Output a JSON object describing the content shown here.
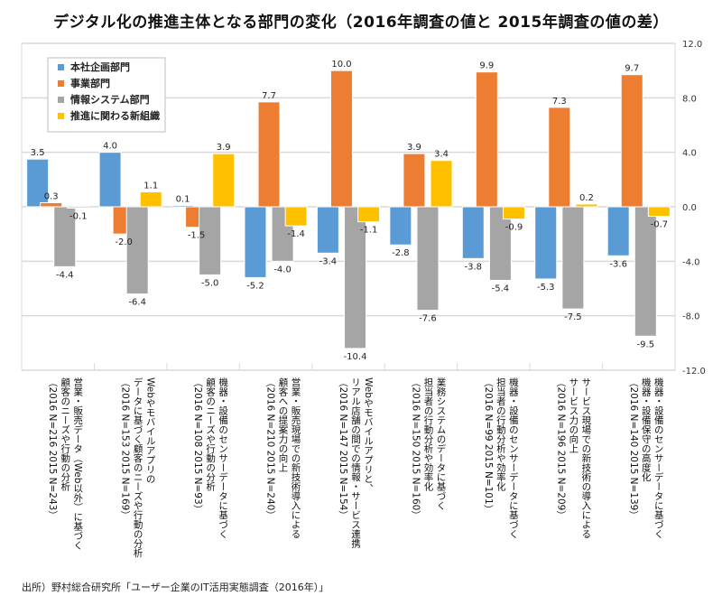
{
  "chart_data": {
    "type": "bar",
    "title": "デジタル化の推進主体となる部門の変化（2016年調査の値と 2015年調査の値の差）",
    "xlabel": "",
    "ylabel": "",
    "ylim": [
      -12.0,
      12.0
    ],
    "yticks": [
      "12.0",
      "8.0",
      "4.0",
      "0.0",
      "-4.0",
      "-8.0",
      "-12.0"
    ],
    "ytick_values": [
      12,
      8,
      4,
      0,
      -4,
      -8,
      -12
    ],
    "y_axis_side": "right",
    "grid": true,
    "legend_position": "top-left",
    "categories": [
      [
        "営業・販売データ（Web以外）に基づく",
        "顧客のニーズや行動の分析",
        "（2016 N=216 2015 N=243）"
      ],
      [
        "Webやモバイルアプリの",
        "データに基づく顧客のニーズや行動の分析",
        "（2016 N=153 2015 N=169）"
      ],
      [
        "機器・設備のセンサーデータに基づく",
        "顧客のニーズや行動の分析",
        "（2016 N=108 2015 N=93）"
      ],
      [
        "営業・販売現場での新技術導入による",
        "顧客への提案力の向上",
        "（2016 N=210 2015 N=240）"
      ],
      [
        "Webやモバイルアプリと、",
        "リアル店舗の間での情報・サービス連携",
        "（2016 N=147 2015 N=154）"
      ],
      [
        "業務システムのデータに基づく",
        "担当者の行動分析や効率化",
        "（2016 N=150 2015 N=160）"
      ],
      [
        "機器・設備のセンサーデータに基づく",
        "担当者の行動分析や効率化",
        "（2016 N=99 2015 N=101）"
      ],
      [
        "サービス現場での新技術の導入による",
        "サービス力の向上",
        "（2016 N=196 2015 N=209）"
      ],
      [
        "機器・設備のセンサーデータに基づく",
        "機器・設備保守の高度化",
        "（2016 N=140 2015 N=139）"
      ]
    ],
    "series": [
      {
        "name": "本社企画部門",
        "color": "#5B9BD5",
        "values": [
          3.5,
          4.0,
          0.1,
          -5.2,
          -3.4,
          -2.8,
          -3.8,
          -5.3,
          -3.6
        ]
      },
      {
        "name": "事業部門",
        "color": "#ED7D31",
        "values": [
          0.3,
          -2.0,
          -1.5,
          7.7,
          10.0,
          3.9,
          9.9,
          7.3,
          9.7
        ]
      },
      {
        "name": "情報システム部門",
        "color": "#A5A5A5",
        "values": [
          -4.4,
          -6.4,
          -5.0,
          -4.0,
          -10.4,
          -7.6,
          -5.4,
          -7.5,
          -9.5
        ]
      },
      {
        "name": "推進に関わる新組織",
        "color": "#FFC000",
        "values": [
          -0.1,
          1.1,
          3.9,
          -1.4,
          -1.1,
          3.4,
          -0.9,
          0.2,
          -0.7
        ]
      }
    ],
    "data_label_format": "0.0"
  },
  "source_note": "出所）野村総合研究所「ユーザー企業のIT活用実態調査（2016年）」"
}
